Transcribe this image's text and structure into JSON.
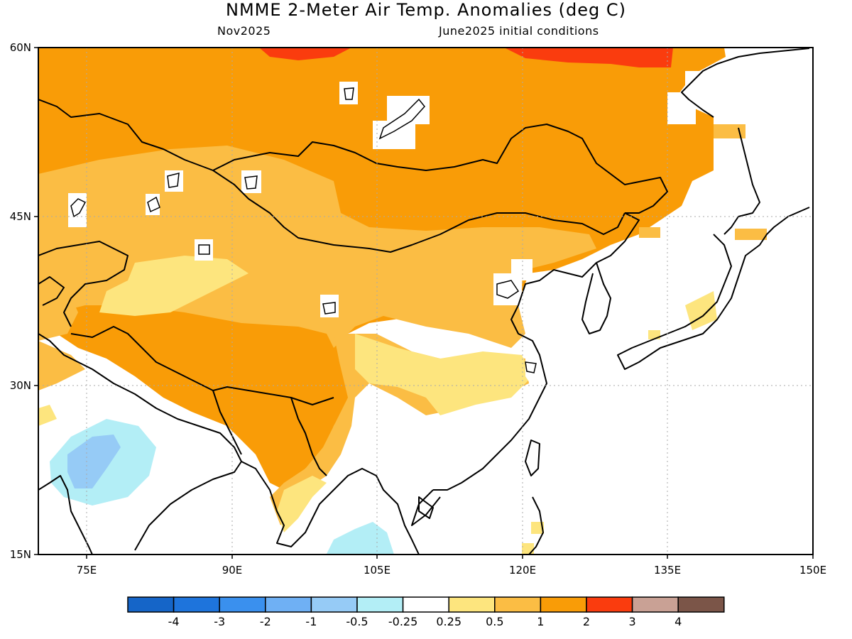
{
  "title": "NMME 2-Meter Air Temp. Anomalies (deg C)",
  "subtitle_left": "Nov2025",
  "subtitle_right": "June2025 initial conditions",
  "map": {
    "lon_range": [
      70,
      150
    ],
    "lat_range": [
      15,
      60
    ],
    "lon_ticks": [
      {
        "value": 75,
        "label": "75E"
      },
      {
        "value": 90,
        "label": "90E"
      },
      {
        "value": 105,
        "label": "105E"
      },
      {
        "value": 120,
        "label": "120E"
      },
      {
        "value": 135,
        "label": "135E"
      },
      {
        "value": 150,
        "label": "150E"
      }
    ],
    "lat_ticks": [
      {
        "value": 15,
        "label": "15N"
      },
      {
        "value": 30,
        "label": "30N"
      },
      {
        "value": 45,
        "label": "45N"
      },
      {
        "value": 60,
        "label": "60N"
      }
    ],
    "gridlines": "dotted"
  },
  "colorbar": {
    "colors": [
      "#1565c8",
      "#1e74dc",
      "#3a90ee",
      "#6fb0f4",
      "#96cbf6",
      "#b3eef6",
      "#ffffff",
      "#fde57e",
      "#fbbd44",
      "#f99c07",
      "#fa3c0e",
      "#c9a195",
      "#7b5548"
    ],
    "labels": [
      "-4",
      "-3",
      "-2",
      "-1",
      "-0.5",
      "-0.25",
      "0.25",
      "0.5",
      "1",
      "2",
      "3",
      "4"
    ]
  },
  "legend_colors": {
    "above_2": "#fa3c0e",
    "1_to_2": "#f99c07",
    "0.5_to_1": "#fbbd44",
    "0.25_to_0.5": "#fde57e",
    "neutral": "#ffffff",
    "-0.5_to_-0.25": "#b3eef6",
    "-1_to_-0.5": "#96cbf6"
  }
}
